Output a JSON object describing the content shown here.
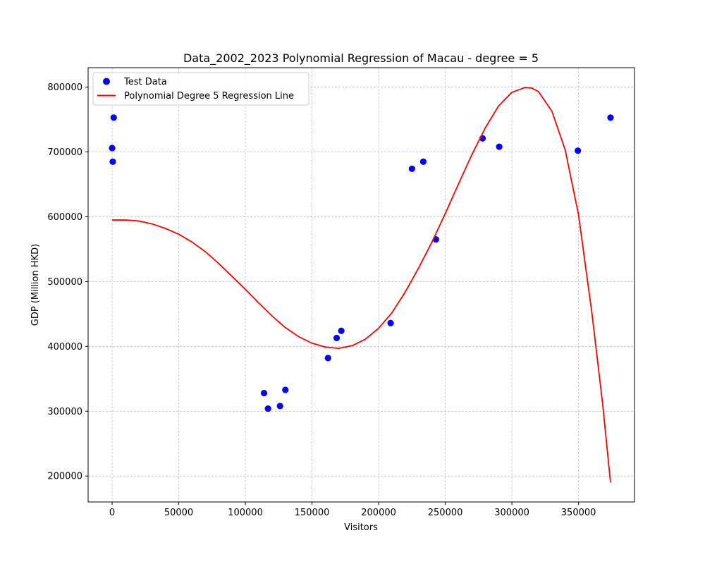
{
  "chart_data": {
    "type": "scatter",
    "title": "Data_2002_2023 Polynomial Regression of Macau - degree = 5",
    "xlabel": "Visitors",
    "ylabel": "GDP (Million HKD)",
    "xlim": [
      -18000,
      392000
    ],
    "ylim": [
      160000,
      830000
    ],
    "xticks": [
      0,
      50000,
      100000,
      150000,
      200000,
      250000,
      300000,
      350000
    ],
    "yticks": [
      200000,
      300000,
      400000,
      500000,
      600000,
      700000,
      800000
    ],
    "xtick_labels": [
      "0",
      "50000",
      "100000",
      "150000",
      "200000",
      "250000",
      "300000",
      "350000"
    ],
    "ytick_labels": [
      "200000",
      "300000",
      "400000",
      "500000",
      "600000",
      "700000",
      "800000"
    ],
    "grid": true,
    "legend_position": "top-left",
    "series": [
      {
        "name": "Test Data",
        "kind": "scatter",
        "color": "#0000ff",
        "points": [
          [
            0,
            706000
          ],
          [
            500,
            685000
          ],
          [
            1200,
            753000
          ],
          [
            114000,
            328000
          ],
          [
            117000,
            304000
          ],
          [
            126000,
            308000
          ],
          [
            130000,
            333000
          ],
          [
            162000,
            382000
          ],
          [
            168500,
            413000
          ],
          [
            172000,
            424000
          ],
          [
            209000,
            436000
          ],
          [
            225000,
            674000
          ],
          [
            233500,
            685000
          ],
          [
            243000,
            565000
          ],
          [
            278000,
            721000
          ],
          [
            290500,
            708000
          ],
          [
            349500,
            702000
          ],
          [
            374000,
            753000
          ]
        ]
      },
      {
        "name": "Polynomial Degree 5 Regression Line",
        "kind": "line",
        "color": "#ff0000",
        "points": [
          [
            0,
            595000
          ],
          [
            10000,
            595000
          ],
          [
            20000,
            593500
          ],
          [
            30000,
            589000
          ],
          [
            40000,
            582000
          ],
          [
            50000,
            573000
          ],
          [
            60000,
            561000
          ],
          [
            70000,
            546000
          ],
          [
            80000,
            528000
          ],
          [
            90000,
            508000
          ],
          [
            100000,
            488000
          ],
          [
            110000,
            467000
          ],
          [
            120000,
            447000
          ],
          [
            130000,
            429000
          ],
          [
            140000,
            415000
          ],
          [
            150000,
            405000
          ],
          [
            160000,
            399000
          ],
          [
            170000,
            397000
          ],
          [
            180000,
            401000
          ],
          [
            190000,
            411000
          ],
          [
            200000,
            428000
          ],
          [
            210000,
            452000
          ],
          [
            220000,
            484000
          ],
          [
            230000,
            521000
          ],
          [
            240000,
            561000
          ],
          [
            250000,
            605000
          ],
          [
            260000,
            651000
          ],
          [
            270000,
            696000
          ],
          [
            280000,
            737000
          ],
          [
            290000,
            771000
          ],
          [
            300000,
            792000
          ],
          [
            310000,
            799500
          ],
          [
            315000,
            798500
          ],
          [
            320000,
            793000
          ],
          [
            330000,
            763000
          ],
          [
            340000,
            703000
          ],
          [
            350000,
            603000
          ],
          [
            360000,
            452000
          ],
          [
            368000,
            313000
          ],
          [
            374000,
            190000
          ]
        ]
      }
    ]
  }
}
